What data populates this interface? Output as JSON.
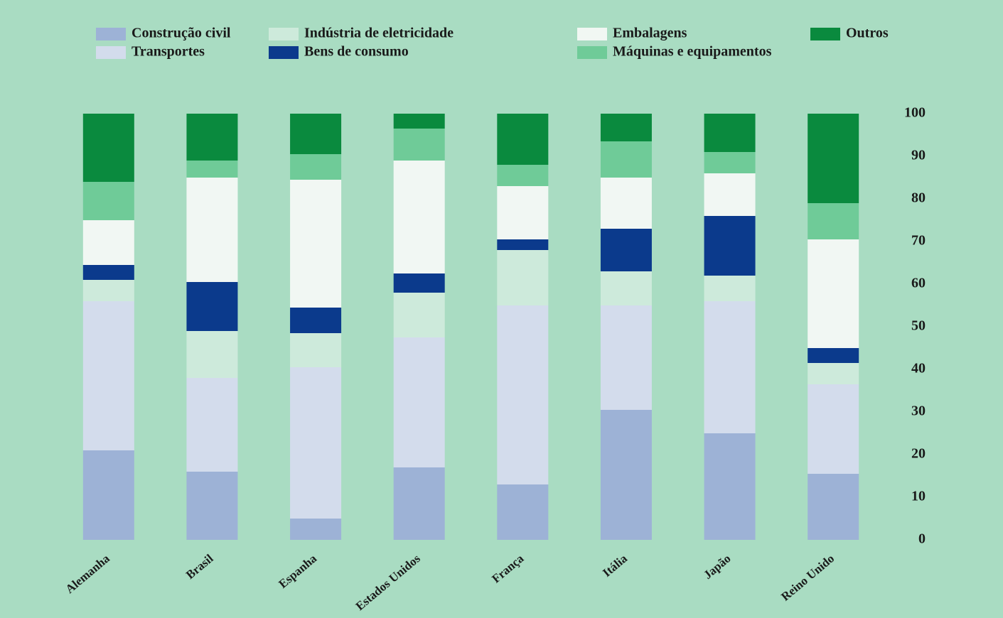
{
  "chart_data": {
    "type": "stacked-bar",
    "categories": [
      "Alemanha",
      "Brasil",
      "Espanha",
      "Estados Unidos",
      "França",
      "Itália",
      "Japão",
      "Reino Unido"
    ],
    "series": [
      {
        "name": "Construção civil",
        "color": "#9db2d6",
        "values": [
          21,
          16,
          5,
          17,
          13,
          30.5,
          25,
          15.5
        ]
      },
      {
        "name": "Transportes",
        "color": "#d3dcec",
        "values": [
          35,
          22,
          35.5,
          30.5,
          42,
          24.5,
          31,
          21
        ]
      },
      {
        "name": "Indústria de eletricidade",
        "color": "#cdeadb",
        "values": [
          5,
          11,
          8,
          10.5,
          13,
          8,
          6,
          5
        ]
      },
      {
        "name": "Bens de consumo",
        "color": "#0b3a8c",
        "values": [
          3.5,
          11.5,
          6,
          4.5,
          2.5,
          10,
          14,
          3.5
        ]
      },
      {
        "name": "Embalagens",
        "color": "#f1f7f3",
        "values": [
          10.5,
          24.5,
          30,
          26.5,
          12.5,
          12,
          10,
          25.5
        ]
      },
      {
        "name": "Máquinas e equipamentos",
        "color": "#6fcb98",
        "values": [
          9,
          4,
          6,
          7.5,
          5,
          8.5,
          5,
          8.5
        ]
      },
      {
        "name": "Outros",
        "color": "#0a8a3e",
        "values": [
          16,
          11,
          9.5,
          3.5,
          12,
          6.5,
          9,
          21
        ]
      }
    ],
    "ylim": [
      0,
      100
    ],
    "yticks": [
      0,
      10,
      20,
      30,
      40,
      50,
      60,
      70,
      80,
      90,
      100
    ]
  }
}
